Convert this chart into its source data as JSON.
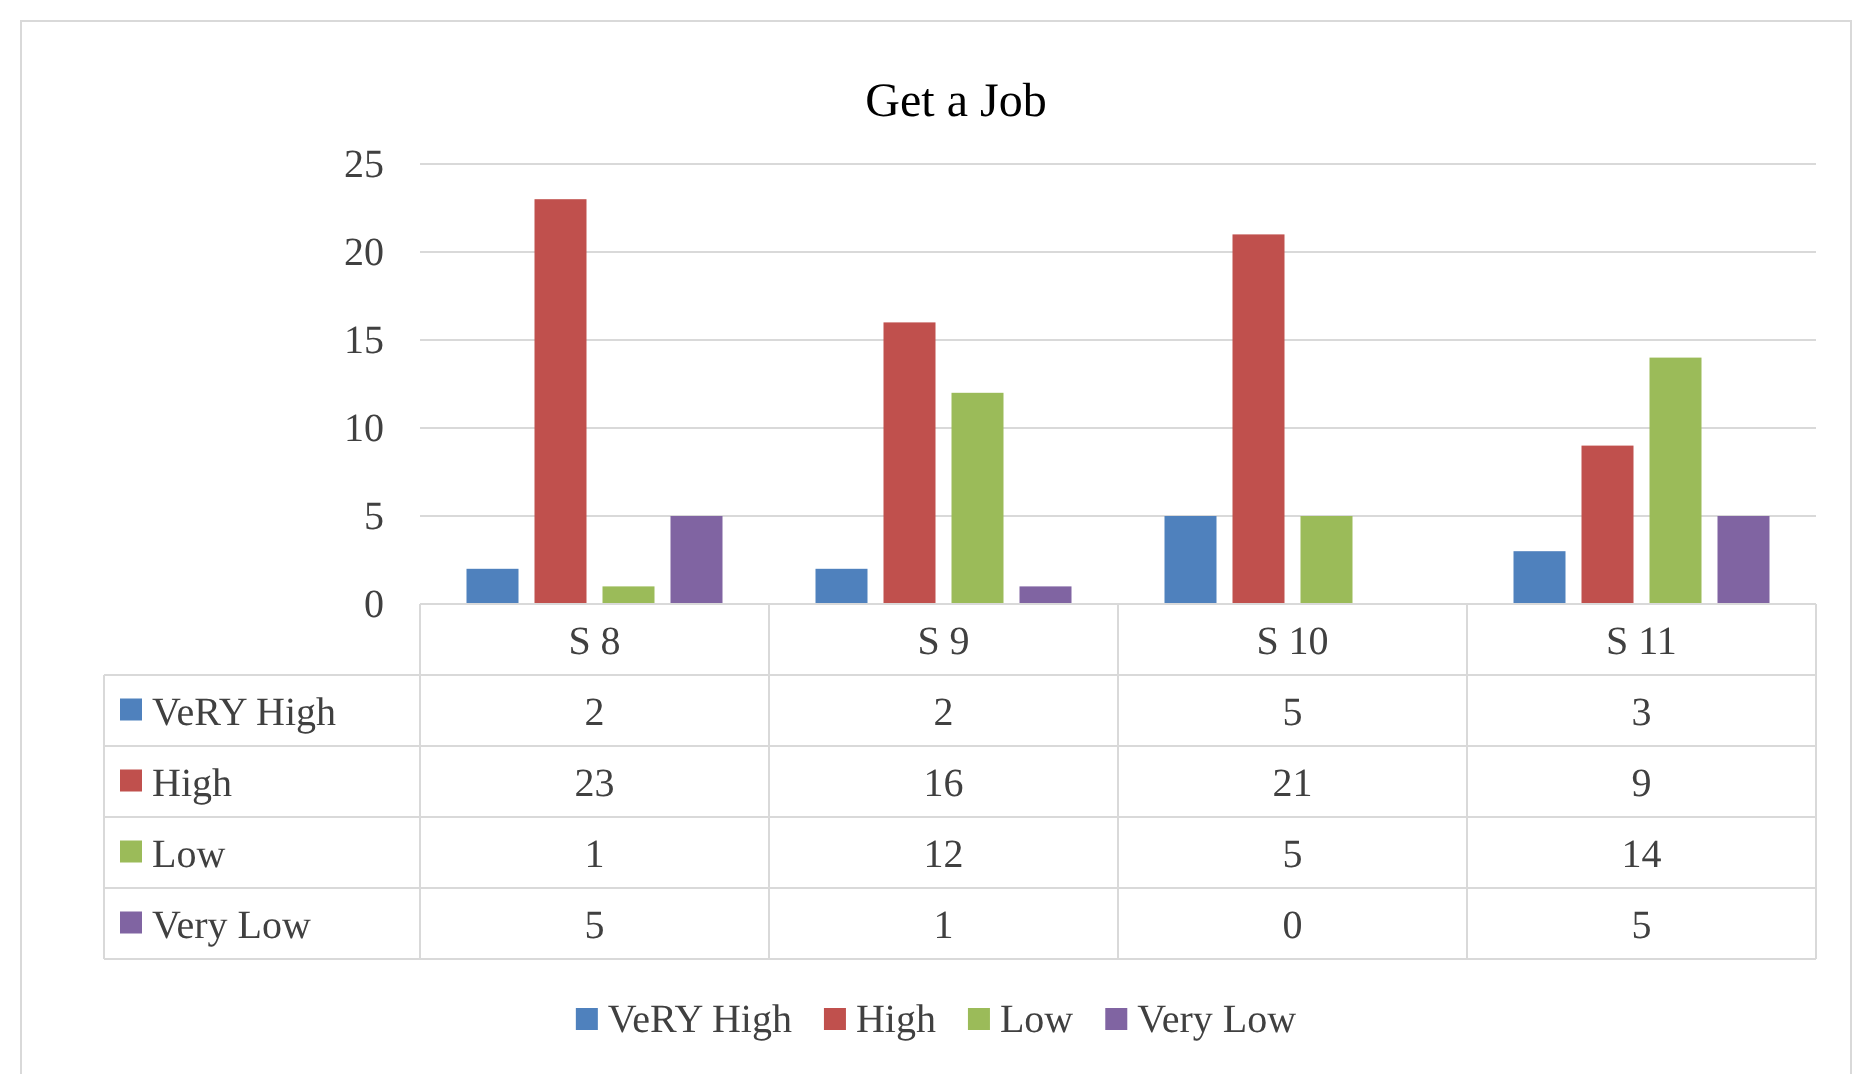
{
  "chart_data": {
    "type": "bar",
    "title": "Get a Job",
    "categories": [
      "S 8",
      "S 9",
      "S 10",
      "S 11"
    ],
    "series": [
      {
        "name": "VeRY High",
        "color": "#4f81bd",
        "values": [
          2,
          2,
          5,
          3
        ]
      },
      {
        "name": "High",
        "color": "#c0504d",
        "values": [
          23,
          16,
          21,
          9
        ]
      },
      {
        "name": "Low",
        "color": "#9bbb59",
        "values": [
          1,
          12,
          5,
          14
        ]
      },
      {
        "name": "Very Low",
        "color": "#8064a2",
        "values": [
          5,
          1,
          0,
          5
        ]
      }
    ],
    "ylim": [
      0,
      25
    ],
    "yticks": [
      0,
      5,
      10,
      15,
      20,
      25
    ],
    "grid": "y",
    "legend": "bottom",
    "data_labels": true
  }
}
